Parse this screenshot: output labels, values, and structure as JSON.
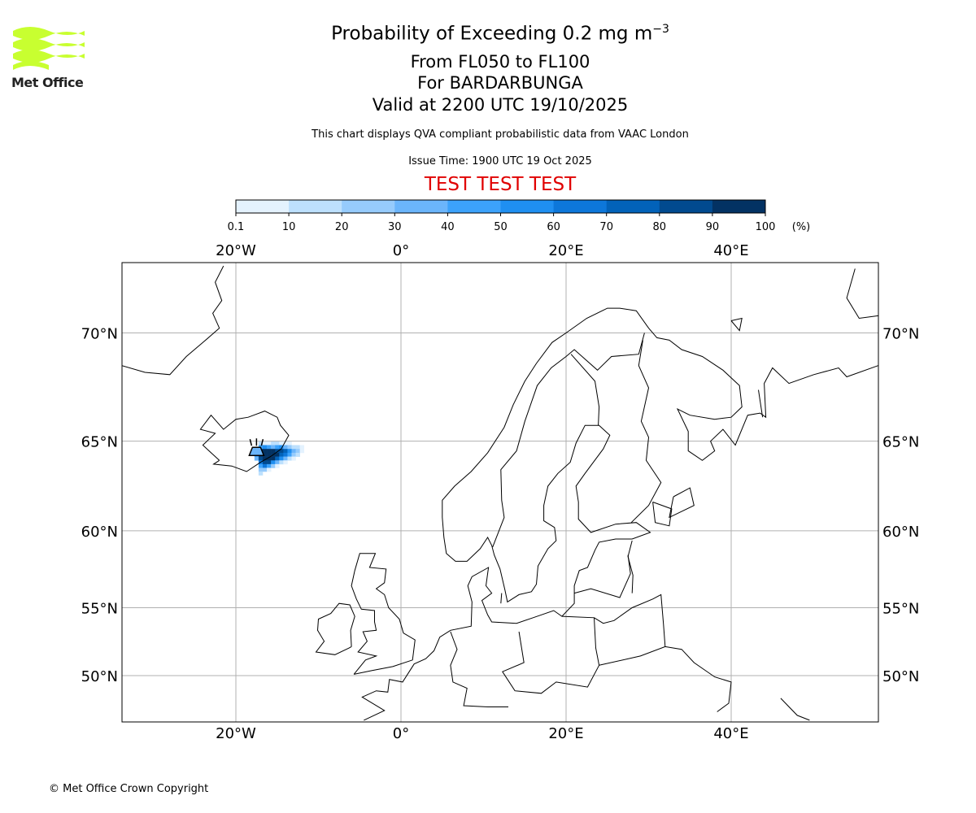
{
  "logo": {
    "text": "Met Office",
    "color": "#c8ff30"
  },
  "header": {
    "title_main": "Probability of Exceeding 0.2 mg m",
    "title_sup": "−3",
    "levels": "From FL050 to FL100",
    "volcano": "For BARDARBUNGA",
    "valid": "Valid at 2200 UTC 19/10/2025",
    "description": "This chart displays QVA compliant probabilistic data from VAAC London",
    "issue": "Issue Time: 1900 UTC 19 Oct 2025",
    "test_banner": "TEST TEST TEST",
    "test_color": "#e00000"
  },
  "colorbar": {
    "ticks": [
      "0.1",
      "10",
      "20",
      "30",
      "40",
      "50",
      "60",
      "70",
      "80",
      "90",
      "100"
    ],
    "unit": "(%)",
    "colors": [
      "#e4f2fe",
      "#bde0fd",
      "#96cbfc",
      "#6bb5fb",
      "#3ca2fb",
      "#1f8ff1",
      "#0d77da",
      "#0262b9",
      "#014a8f",
      "#033263"
    ]
  },
  "map": {
    "lon_ticks": [
      {
        "v": -20,
        "label": "20°W"
      },
      {
        "v": 0,
        "label": "0°"
      },
      {
        "v": 20,
        "label": "20°E"
      },
      {
        "v": 40,
        "label": "40°E"
      }
    ],
    "lat_ticks": [
      {
        "v": 70,
        "label": "70°N"
      },
      {
        "v": 65,
        "label": "65°N"
      },
      {
        "v": 60,
        "label": "60°N"
      },
      {
        "v": 55,
        "label": "55°N"
      },
      {
        "v": 50,
        "label": "50°N"
      }
    ],
    "extent": {
      "lon": [
        -33.8,
        57.8
      ],
      "lat": [
        46.4,
        72.5
      ]
    },
    "volcano": {
      "name": "BARDARBUNGA",
      "lon": -17.5,
      "lat": 64.6
    },
    "plume_cells": [
      [
        -17,
        64.9,
        15
      ],
      [
        -16.5,
        64.9,
        8
      ],
      [
        -16,
        64.9,
        5
      ],
      [
        -15.5,
        64.9,
        12
      ],
      [
        -15,
        64.9,
        10
      ],
      [
        -14.5,
        64.9,
        6
      ],
      [
        -14,
        64.9,
        4
      ],
      [
        -13.5,
        64.9,
        3
      ],
      [
        -17,
        64.7,
        40
      ],
      [
        -16.5,
        64.7,
        55
      ],
      [
        -16,
        64.7,
        45
      ],
      [
        -15.5,
        64.7,
        35
      ],
      [
        -15,
        64.7,
        40
      ],
      [
        -14.5,
        64.7,
        50
      ],
      [
        -14,
        64.7,
        35
      ],
      [
        -13.5,
        64.7,
        20
      ],
      [
        -13,
        64.7,
        15
      ],
      [
        -12.5,
        64.7,
        10
      ],
      [
        -12,
        64.7,
        5
      ],
      [
        -17.5,
        64.5,
        40
      ],
      [
        -17,
        64.5,
        90
      ],
      [
        -16.5,
        64.5,
        95
      ],
      [
        -16,
        64.5,
        95
      ],
      [
        -15.5,
        64.5,
        92
      ],
      [
        -15,
        64.5,
        88
      ],
      [
        -14.5,
        64.5,
        80
      ],
      [
        -14,
        64.5,
        70
      ],
      [
        -13.5,
        64.5,
        50
      ],
      [
        -13,
        64.5,
        35
      ],
      [
        -12.5,
        64.5,
        20
      ],
      [
        -12,
        64.5,
        8
      ],
      [
        -17.5,
        64.3,
        50
      ],
      [
        -17,
        64.3,
        95
      ],
      [
        -16.5,
        64.3,
        98
      ],
      [
        -16,
        64.3,
        97
      ],
      [
        -15.5,
        64.3,
        95
      ],
      [
        -15,
        64.3,
        90
      ],
      [
        -14.5,
        64.3,
        75
      ],
      [
        -14,
        64.3,
        60
      ],
      [
        -13.5,
        64.3,
        40
      ],
      [
        -13,
        64.3,
        25
      ],
      [
        -12.5,
        64.3,
        10
      ],
      [
        -17.5,
        64.1,
        30
      ],
      [
        -17,
        64.1,
        80
      ],
      [
        -16.5,
        64.1,
        95
      ],
      [
        -16,
        64.1,
        95
      ],
      [
        -15.5,
        64.1,
        90
      ],
      [
        -15,
        64.1,
        70
      ],
      [
        -14.5,
        64.1,
        50
      ],
      [
        -14,
        64.1,
        30
      ],
      [
        -13.5,
        64.1,
        15
      ],
      [
        -13,
        64.1,
        5
      ],
      [
        -17,
        63.9,
        60
      ],
      [
        -16.5,
        63.9,
        85
      ],
      [
        -16,
        63.9,
        80
      ],
      [
        -15.5,
        63.9,
        55
      ],
      [
        -15,
        63.9,
        30
      ],
      [
        -14.5,
        63.9,
        15
      ],
      [
        -14,
        63.9,
        5
      ],
      [
        -17,
        63.7,
        40
      ],
      [
        -16.5,
        63.7,
        60
      ],
      [
        -16,
        63.7,
        45
      ],
      [
        -15.5,
        63.7,
        20
      ],
      [
        -15,
        63.7,
        8
      ],
      [
        -17,
        63.5,
        25
      ],
      [
        -16.5,
        63.5,
        20
      ],
      [
        -16,
        63.5,
        8
      ],
      [
        -17,
        63.3,
        12
      ]
    ]
  },
  "footer": {
    "copyright": "© Met Office Crown Copyright"
  }
}
